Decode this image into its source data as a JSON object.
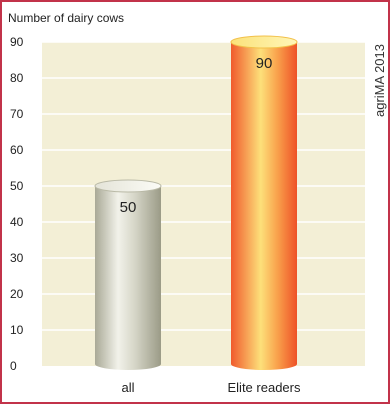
{
  "chart_data": {
    "type": "bar",
    "title": "",
    "xlabel": "",
    "ylabel": "Number of dairy cows",
    "categories": [
      "all",
      "Elite readers"
    ],
    "values": [
      50,
      90
    ],
    "value_labels": [
      "50",
      "90"
    ],
    "ylim": [
      0,
      90
    ],
    "yticks": [
      0,
      10,
      20,
      30,
      40,
      50,
      60,
      70,
      80,
      90
    ],
    "grid": true,
    "source_note": "agriMA 2013",
    "colors": {
      "frame": "#c2334a",
      "plot_background": "#f3efd6",
      "gridline": "#ffffff",
      "bar_all": "#c8c8b8",
      "bar_elite": "#f47a3a"
    }
  }
}
